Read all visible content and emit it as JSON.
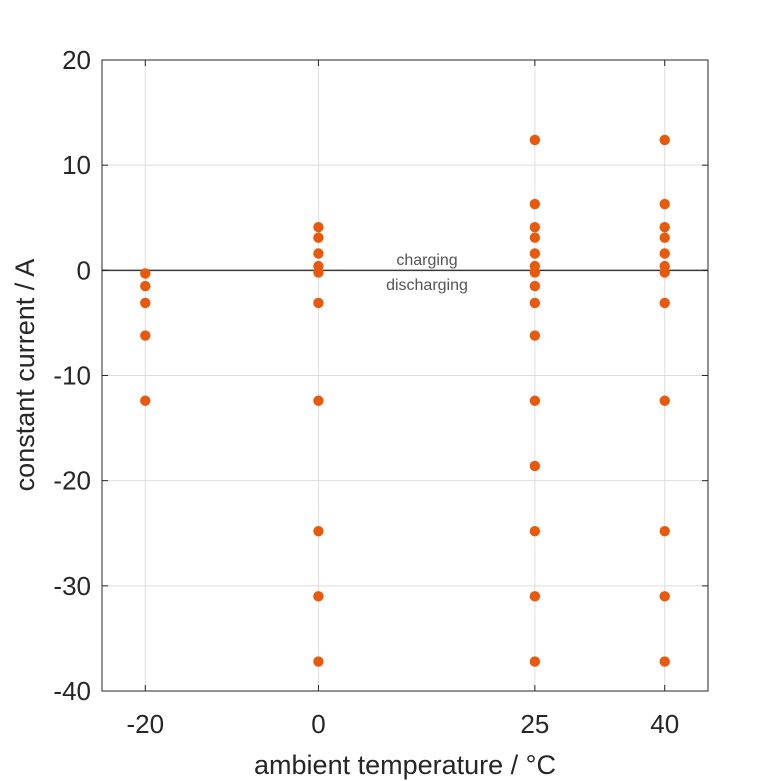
{
  "chart_data": {
    "type": "scatter",
    "xlabel": "ambient temperature / °C",
    "ylabel": "constant current / A",
    "xticks": [
      -20,
      0,
      25,
      40
    ],
    "yticks": [
      -40,
      -30,
      -20,
      -10,
      0,
      10,
      20
    ],
    "xlim": [
      -25,
      45
    ],
    "ylim": [
      -40,
      20
    ],
    "grid": true,
    "marker_color": "#E8590C",
    "annotations": [
      "charging",
      "discharging"
    ],
    "points": [
      {
        "x": -20,
        "y": -0.3
      },
      {
        "x": -20,
        "y": -1.5
      },
      {
        "x": -20,
        "y": -3.1
      },
      {
        "x": -20,
        "y": -6.2
      },
      {
        "x": -20,
        "y": -12.4
      },
      {
        "x": 0,
        "y": 4.1
      },
      {
        "x": 0,
        "y": 3.1
      },
      {
        "x": 0,
        "y": 1.6
      },
      {
        "x": 0,
        "y": 0.4
      },
      {
        "x": 0,
        "y": -0.2
      },
      {
        "x": 0,
        "y": -3.1
      },
      {
        "x": 0,
        "y": -12.4
      },
      {
        "x": 0,
        "y": -24.8
      },
      {
        "x": 0,
        "y": -31.0
      },
      {
        "x": 0,
        "y": -37.2
      },
      {
        "x": 25,
        "y": 12.4
      },
      {
        "x": 25,
        "y": 6.3
      },
      {
        "x": 25,
        "y": 4.1
      },
      {
        "x": 25,
        "y": 3.1
      },
      {
        "x": 25,
        "y": 1.6
      },
      {
        "x": 25,
        "y": 0.4
      },
      {
        "x": 25,
        "y": -0.2
      },
      {
        "x": 25,
        "y": -1.5
      },
      {
        "x": 25,
        "y": -3.1
      },
      {
        "x": 25,
        "y": -6.2
      },
      {
        "x": 25,
        "y": -12.4
      },
      {
        "x": 25,
        "y": -18.6
      },
      {
        "x": 25,
        "y": -24.8
      },
      {
        "x": 25,
        "y": -31.0
      },
      {
        "x": 25,
        "y": -37.2
      },
      {
        "x": 40,
        "y": 12.4
      },
      {
        "x": 40,
        "y": 6.3
      },
      {
        "x": 40,
        "y": 4.1
      },
      {
        "x": 40,
        "y": 3.1
      },
      {
        "x": 40,
        "y": 1.6
      },
      {
        "x": 40,
        "y": 0.4
      },
      {
        "x": 40,
        "y": -0.2
      },
      {
        "x": 40,
        "y": -3.1
      },
      {
        "x": 40,
        "y": -12.4
      },
      {
        "x": 40,
        "y": -24.8
      },
      {
        "x": 40,
        "y": -31.0
      },
      {
        "x": 40,
        "y": -37.2
      }
    ]
  }
}
